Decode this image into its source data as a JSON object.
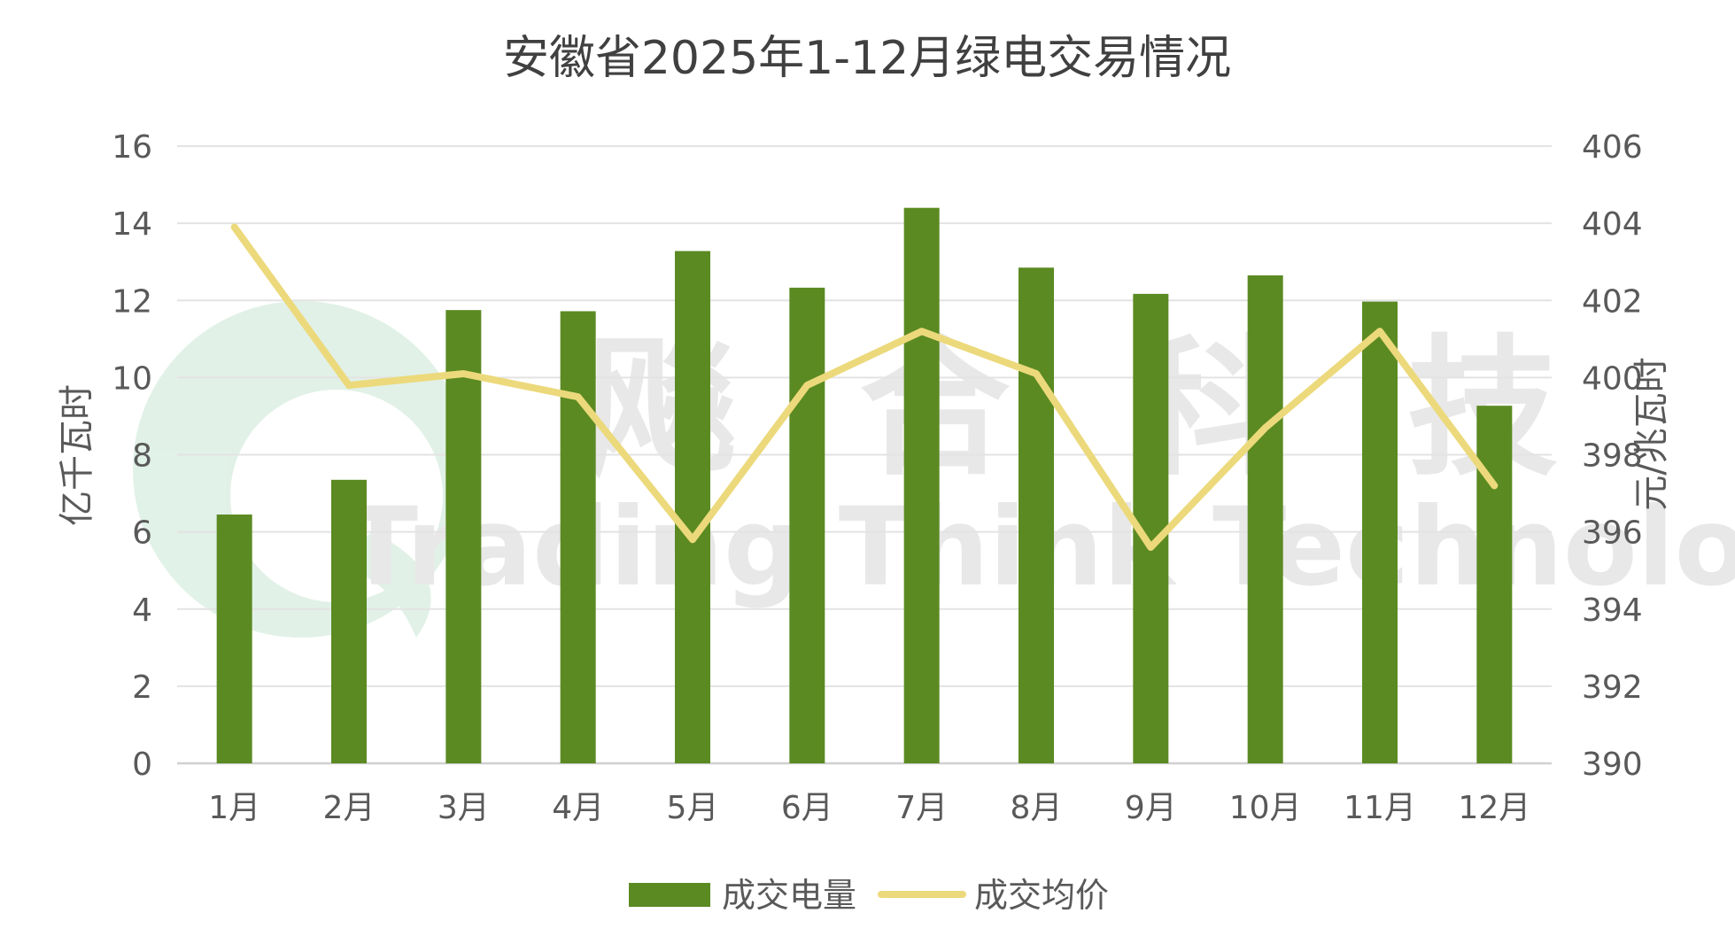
{
  "chart_data": {
    "type": "bar",
    "title": "安徽省2025年1-12月绿电交易情况",
    "categories": [
      "1月",
      "2月",
      "3月",
      "4月",
      "5月",
      "6月",
      "7月",
      "8月",
      "9月",
      "10月",
      "11月",
      "12月"
    ],
    "series": [
      {
        "name": "成交电量",
        "type": "bar",
        "axis": "left",
        "color": "#5b8a22",
        "values": [
          6.45,
          7.35,
          11.75,
          11.72,
          13.28,
          12.33,
          14.4,
          12.85,
          12.17,
          12.65,
          11.97,
          9.27
        ]
      },
      {
        "name": "成交均价",
        "type": "line",
        "axis": "right",
        "color": "#ecd97b",
        "values": [
          403.9,
          399.8,
          400.1,
          399.5,
          395.8,
          399.8,
          401.2,
          400.1,
          395.6,
          398.7,
          401.2,
          397.2
        ]
      }
    ],
    "y_left": {
      "label": "亿千瓦时",
      "ylim": [
        0,
        16
      ],
      "ticks": [
        "0",
        "2",
        "4",
        "6",
        "8",
        "10",
        "12",
        "14",
        "16"
      ]
    },
    "y_right": {
      "label": "元/兆瓦时",
      "ylim": [
        390,
        406
      ],
      "ticks": [
        "390",
        "392",
        "394",
        "396",
        "398",
        "400",
        "402",
        "404",
        "406"
      ]
    },
    "grid": true,
    "legend_position": "bottom"
  },
  "watermark": {
    "cn_text": "飚 合 科 技",
    "en_text": "Trading Think Technology",
    "logo": "swirl-logo"
  }
}
